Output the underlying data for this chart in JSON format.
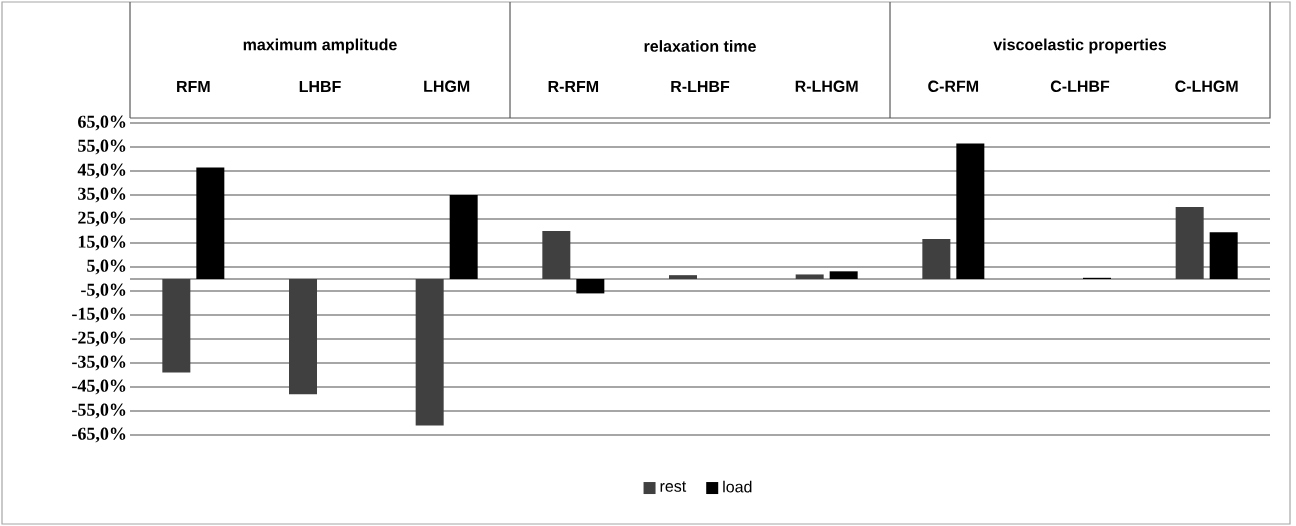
{
  "chart_data": {
    "type": "bar",
    "categories": [
      "RFM",
      "LHBF",
      "LHGM",
      "R-RFM",
      "R-LHBF",
      "R-LHGM",
      "C-RFM",
      "C-LHBF",
      "C-LHGM"
    ],
    "series": [
      {
        "name": "rest",
        "color": "#404040",
        "values": [
          -39,
          -48,
          -61,
          20,
          1.6,
          1.9,
          16.7,
          null,
          30
        ]
      },
      {
        "name": "load",
        "color": "#000000",
        "values": [
          46.5,
          null,
          35,
          -6,
          null,
          3.2,
          56.5,
          0.5,
          19.5
        ]
      }
    ],
    "annotations": [
      "maximum amplitude",
      "relaxation time",
      "viscoelastic properties"
    ],
    "ylim": [
      -65,
      65
    ],
    "yticks": [
      {
        "value": 65,
        "label": "65,0%"
      },
      {
        "value": 55,
        "label": "55,0%"
      },
      {
        "value": 45,
        "label": "45,0%"
      },
      {
        "value": 35,
        "label": "35,0%"
      },
      {
        "value": 25,
        "label": "25,0%"
      },
      {
        "value": 15,
        "label": "15,0%"
      },
      {
        "value": 5,
        "label": "5,0%"
      },
      {
        "value": -5,
        "label": "-5,0%"
      },
      {
        "value": -15,
        "label": "-15,0%"
      },
      {
        "value": -25,
        "label": "-25,0%"
      },
      {
        "value": -35,
        "label": "-35,0%"
      },
      {
        "value": -45,
        "label": "-45,0%"
      },
      {
        "value": -55,
        "label": "-55,0%"
      },
      {
        "value": -65,
        "label": "-65,0%"
      }
    ],
    "grid": "y",
    "legend": "bottom"
  }
}
